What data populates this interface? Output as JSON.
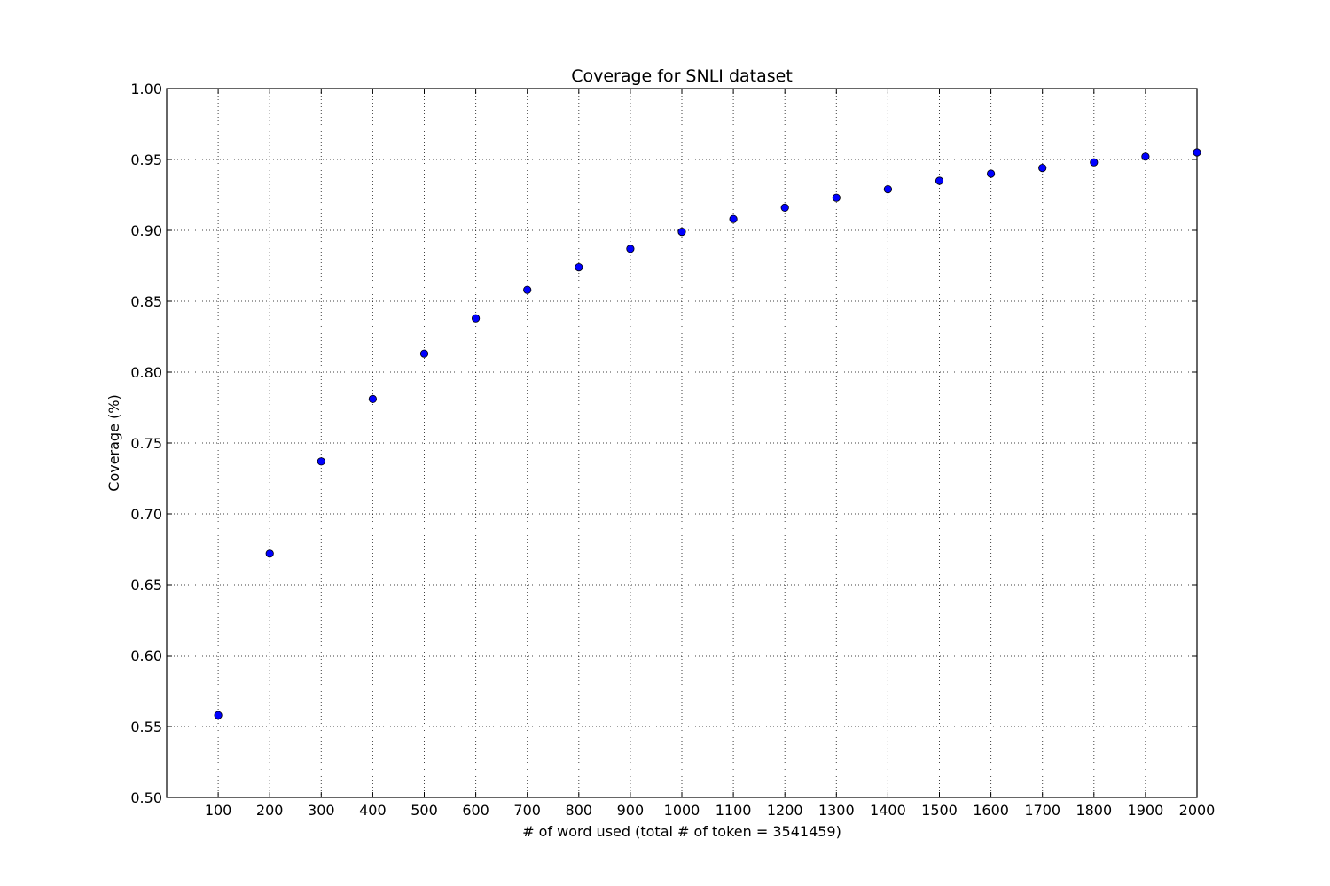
{
  "chart_data": {
    "type": "scatter",
    "title": "Coverage for SNLI dataset",
    "xlabel": "# of word used (total # of token = 3541459)",
    "ylabel": "Coverage (%)",
    "xlim": [
      0,
      2000
    ],
    "ylim": [
      0.5,
      1.0
    ],
    "x_ticks": [
      100,
      200,
      300,
      400,
      500,
      600,
      700,
      800,
      900,
      1000,
      1100,
      1200,
      1300,
      1400,
      1500,
      1600,
      1700,
      1800,
      1900,
      2000
    ],
    "x_tick_labels": [
      "100",
      "200",
      "300",
      "400",
      "500",
      "600",
      "700",
      "800",
      "900",
      "1000",
      "1100",
      "1200",
      "1300",
      "1400",
      "1500",
      "1600",
      "1700",
      "1800",
      "1900",
      "2000"
    ],
    "y_ticks": [
      0.5,
      0.55,
      0.6,
      0.65,
      0.7,
      0.75,
      0.8,
      0.85,
      0.9,
      0.95,
      1.0
    ],
    "y_tick_labels": [
      "0.50",
      "0.55",
      "0.60",
      "0.65",
      "0.70",
      "0.75",
      "0.80",
      "0.85",
      "0.90",
      "0.95",
      "1.00"
    ],
    "grid": true,
    "series": [
      {
        "marker_color": "#0000ff",
        "x": [
          100,
          200,
          300,
          400,
          500,
          600,
          700,
          800,
          900,
          1000,
          1100,
          1200,
          1300,
          1400,
          1500,
          1600,
          1700,
          1800,
          1900,
          2000
        ],
        "y": [
          0.558,
          0.672,
          0.737,
          0.781,
          0.813,
          0.838,
          0.858,
          0.874,
          0.887,
          0.899,
          0.908,
          0.916,
          0.923,
          0.929,
          0.935,
          0.94,
          0.944,
          0.948,
          0.952,
          0.955
        ]
      }
    ]
  }
}
